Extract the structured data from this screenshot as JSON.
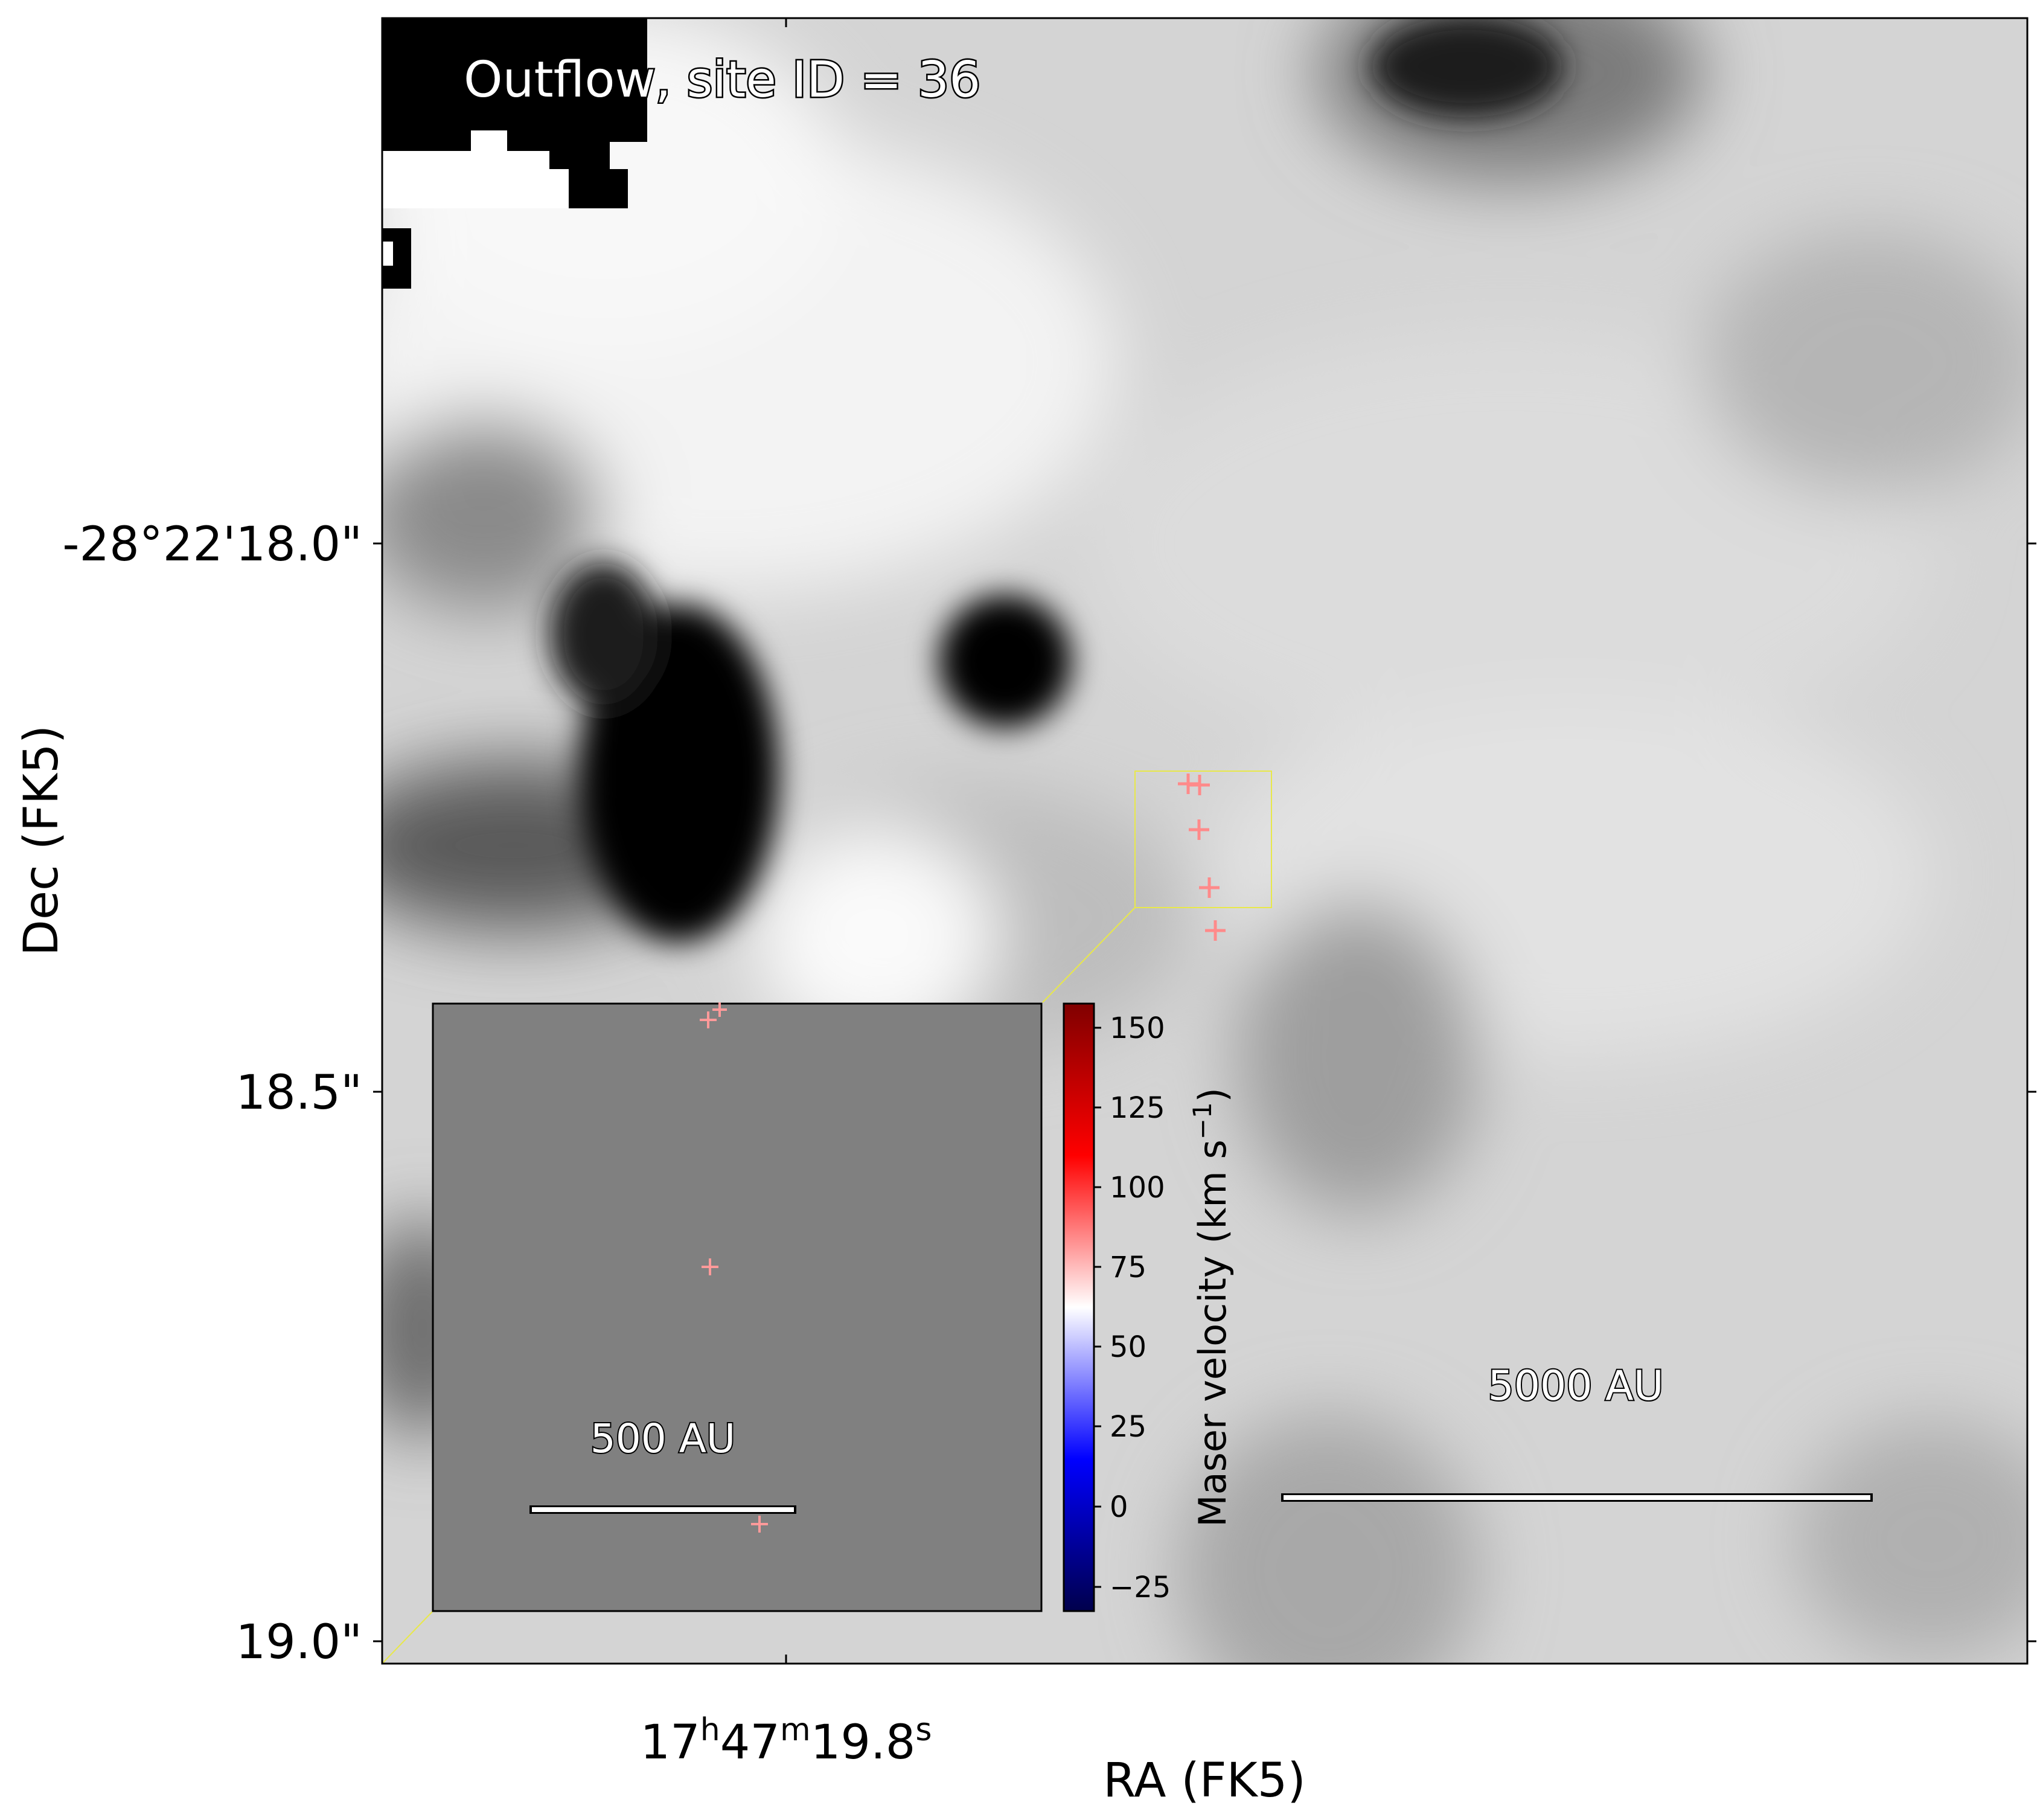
{
  "panel_title": "Outflow, site ID = 36",
  "axes": {
    "xlabel": "RA (FK5)",
    "ylabel": "Dec (FK5)",
    "x_ticks": [
      {
        "h": "17",
        "m": "47",
        "s": "19.8"
      }
    ],
    "y_ticks": [
      "-28°22'18.0\"",
      "18.5\"",
      "19.0\""
    ]
  },
  "scalebar_main": "5000 AU",
  "scalebar_inset": "500 AU",
  "colorbar": {
    "label": "Maser velocity (km s",
    "label_sup": "−1",
    "label_close": ")",
    "colormap": "seismic",
    "ticks": [
      "−25",
      "0",
      "25",
      "50",
      "75",
      "100",
      "125",
      "150"
    ],
    "range": [
      -33,
      160
    ]
  },
  "colors": {
    "marker": "#ff8a8a",
    "zoom_box": "#e8e84a",
    "inset_background": "#808080"
  },
  "maser_velocity": {
    "main_markers": 6,
    "inset_markers": 5
  }
}
